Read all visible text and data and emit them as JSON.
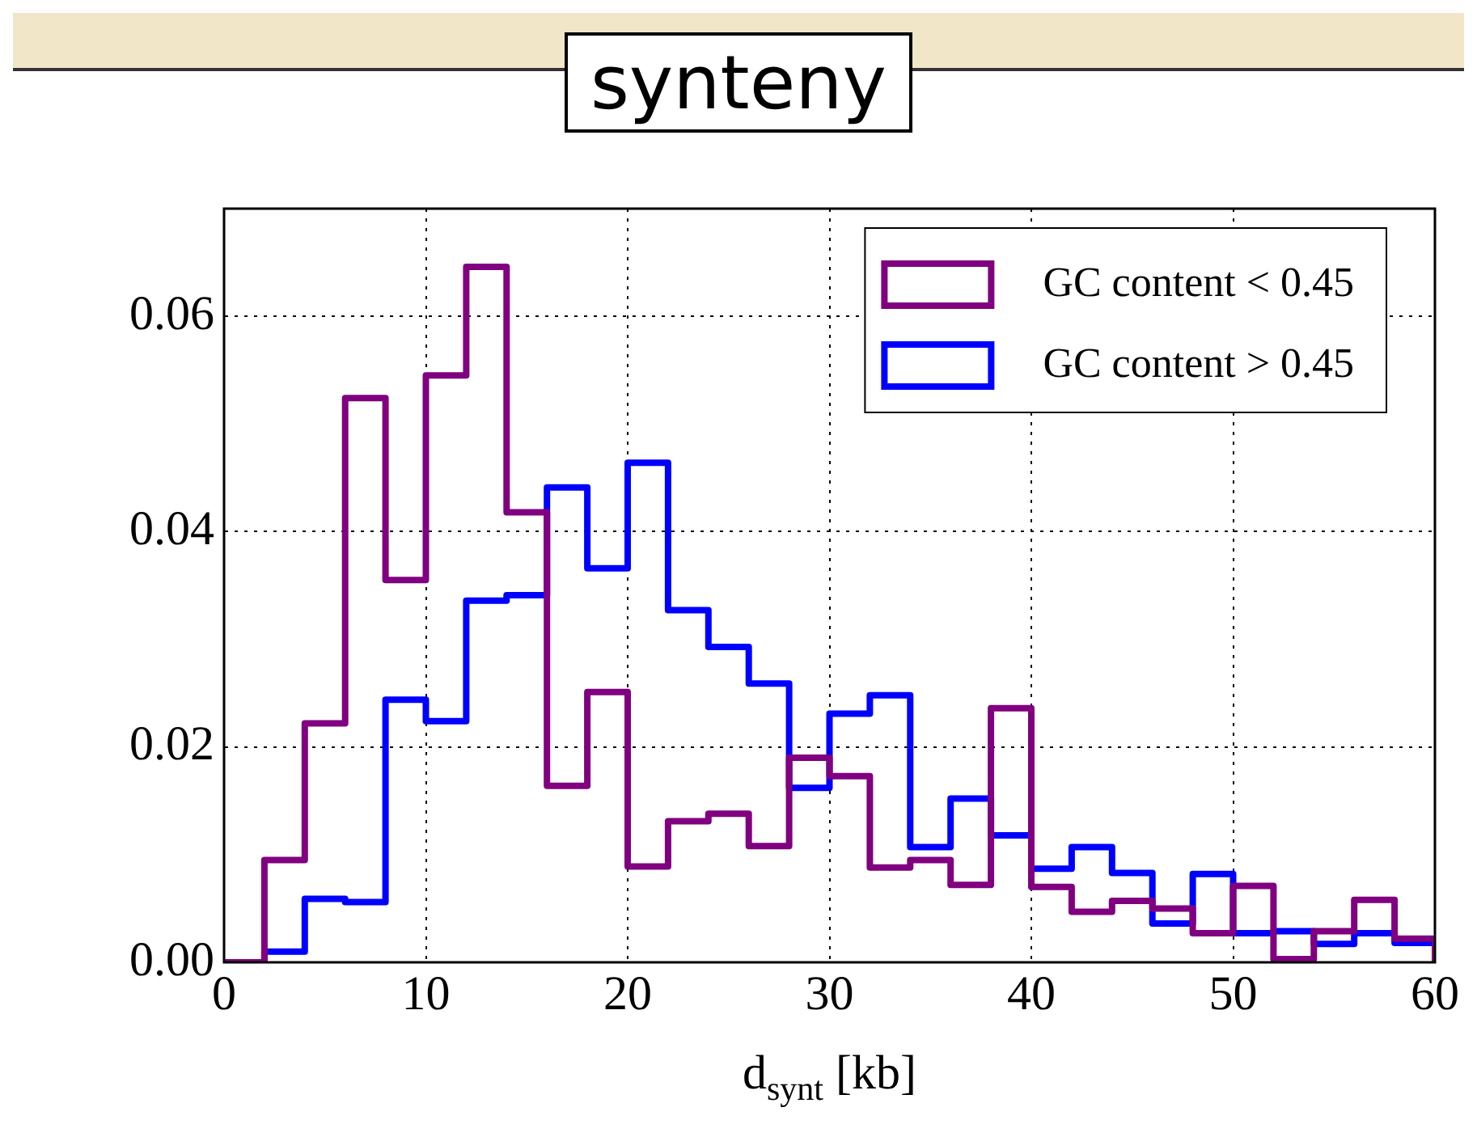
{
  "chart_data": {
    "type": "histogram",
    "title": "synteny",
    "xlabel": "d$_{synt}$ [kb]",
    "bins": [
      0,
      2,
      4,
      6,
      8,
      10,
      12,
      14,
      16,
      18,
      20,
      22,
      24,
      26,
      28,
      30,
      32,
      34,
      36,
      38,
      40,
      42,
      44,
      46,
      48,
      50,
      52,
      54,
      56,
      58,
      60
    ],
    "series": [
      {
        "name": "GC content < 0.45",
        "color": "#800080",
        "values": [
          0,
          0.0095,
          0.0222,
          0.0524,
          0.0355,
          0.0545,
          0.0646,
          0.0418,
          0.0164,
          0.0251,
          0.0089,
          0.0131,
          0.0138,
          0.0108,
          0.019,
          0.0173,
          0.0088,
          0.0095,
          0.0072,
          0.0236,
          0.007,
          0.0047,
          0.0057,
          0.005,
          0.0027,
          0.0071,
          0.0003,
          0.0029,
          0.0058,
          0.0022
        ]
      },
      {
        "name": "GC content > 0.45",
        "color": "#0000ff",
        "values": [
          0,
          0.001,
          0.0059,
          0.0056,
          0.0244,
          0.0224,
          0.0336,
          0.0341,
          0.0441,
          0.0366,
          0.0464,
          0.0327,
          0.0293,
          0.0259,
          0.0162,
          0.0231,
          0.0248,
          0.0107,
          0.0152,
          0.0118,
          0.0087,
          0.0107,
          0.0083,
          0.0036,
          0.0082,
          0.0027,
          0.0029,
          0.0017,
          0.0027,
          0.0018
        ]
      }
    ],
    "xlim": [
      0,
      60
    ],
    "xticks": [
      0,
      10,
      20,
      30,
      40,
      50,
      60
    ],
    "ylim": [
      0,
      0.07
    ],
    "yticks": [
      {
        "value": 0,
        "label": "0.00"
      },
      {
        "value": 0.02,
        "label": "0.02"
      },
      {
        "value": 0.04,
        "label": "0.04"
      },
      {
        "value": 0.06,
        "label": "0.06"
      }
    ],
    "grid": true,
    "legend": "top right"
  }
}
